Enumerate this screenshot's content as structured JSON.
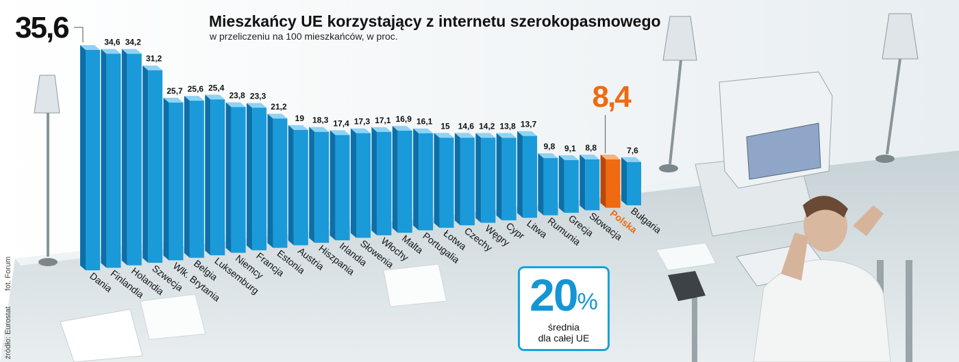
{
  "chart_data": {
    "type": "bar",
    "title": "Mieszkańcy UE korzystający z internetu szerokopasmowego",
    "subtitle": "w przeliczeniu na 100 mieszkańców, w proc.",
    "categories": [
      "Dania",
      "Finlandia",
      "Holandia",
      "Szwecja",
      "Wlk. Brytania",
      "Belgia",
      "Luksemburg",
      "Niemcy",
      "Francja",
      "Estonia",
      "Austria",
      "Hiszpania",
      "Irlandia",
      "Słowenia",
      "Włochy",
      "Malta",
      "Portugalia",
      "Łotwa",
      "Czechy",
      "Węgry",
      "Cypr",
      "Litwa",
      "Rumunia",
      "Grecja",
      "Słowacja",
      "Polska",
      "Bułgaria"
    ],
    "value_labels": [
      "35,6",
      "34,6",
      "34,2",
      "31,2",
      "25,7",
      "25,6",
      "25,4",
      "23,8",
      "23,3",
      "21,2",
      "19",
      "18,3",
      "17,4",
      "17,3",
      "17,1",
      "16,9",
      "16,1",
      "15",
      "14,6",
      "14,2",
      "13,8",
      "13,7",
      "9,8",
      "9,1",
      "8,8",
      "8,4",
      "7,6"
    ],
    "values": [
      35.6,
      34.6,
      34.2,
      31.2,
      25.7,
      25.6,
      25.4,
      23.8,
      23.3,
      21.2,
      19,
      18.3,
      17.4,
      17.3,
      17.1,
      16.9,
      16.1,
      15,
      14.6,
      14.2,
      13.8,
      13.7,
      9.8,
      9.1,
      8.8,
      8.4,
      7.6
    ],
    "highlight": "Polska",
    "colors": {
      "bar": "#1a9ad9",
      "bar_top": "#8fd3f4",
      "bar_side": "#0d6fa8",
      "highlight": "#ef6a11",
      "highlight_top": "#f9b27a",
      "highlight_side": "#b9480a"
    },
    "ylim": [
      0,
      36
    ]
  },
  "average": {
    "value": "20",
    "unit": "%",
    "label_line1": "średnia",
    "label_line2": "dla całej UE"
  },
  "credits": {
    "source": "źródło: Eurostat",
    "photo": "fot. Forum"
  }
}
